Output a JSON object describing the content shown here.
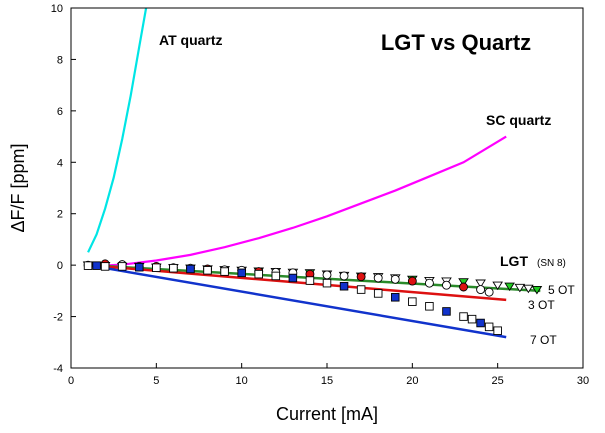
{
  "chart_data": {
    "type": "line",
    "title": "LGT vs Quartz",
    "xlabel": "Current [mA]",
    "ylabel": "ΔF/F [ppm]",
    "xlim": [
      0,
      30
    ],
    "ylim": [
      -4,
      10
    ],
    "x_ticks": [
      "0",
      "5",
      "10",
      "15",
      "20",
      "25",
      "30"
    ],
    "y_ticks": [
      "-4",
      "-2",
      "0",
      "2",
      "4",
      "6",
      "8",
      "10"
    ],
    "grid": false,
    "annotations": {
      "at_quartz": "AT quartz",
      "sc_quartz": "SC quartz",
      "lgt": "LGT",
      "lgt_sn": "(SN 8)",
      "ot5": "5 OT",
      "ot3": "3 OT",
      "ot7": "7 OT"
    },
    "series": [
      {
        "name": "AT quartz",
        "style": "line",
        "color": "#00e5e5",
        "points": [
          [
            1.0,
            0.5
          ],
          [
            1.5,
            1.2
          ],
          [
            2.0,
            2.2
          ],
          [
            2.5,
            3.4
          ],
          [
            3.0,
            4.9
          ],
          [
            3.5,
            6.6
          ],
          [
            4.0,
            8.5
          ],
          [
            4.4,
            10.0
          ]
        ]
      },
      {
        "name": "SC quartz",
        "style": "line",
        "color": "#ff00ff",
        "points": [
          [
            1.0,
            -0.05
          ],
          [
            3,
            0.02
          ],
          [
            5,
            0.18
          ],
          [
            7,
            0.4
          ],
          [
            9,
            0.7
          ],
          [
            11,
            1.05
          ],
          [
            13,
            1.45
          ],
          [
            15,
            1.9
          ],
          [
            17,
            2.4
          ],
          [
            19,
            2.9
          ],
          [
            21,
            3.45
          ],
          [
            23,
            4.0
          ],
          [
            25.5,
            5.0
          ]
        ]
      },
      {
        "name": "5 OT",
        "style": "markers",
        "marker": "triangle-down",
        "fill": "#22cc22",
        "line_color": "#2a8a2a",
        "points": [
          [
            1,
            0
          ],
          [
            2,
            -0.02
          ],
          [
            3,
            -0.05
          ],
          [
            4,
            -0.05
          ],
          [
            5,
            -0.08
          ],
          [
            6,
            -0.1
          ],
          [
            7,
            -0.12
          ],
          [
            8,
            -0.15
          ],
          [
            9,
            -0.18
          ],
          [
            10,
            -0.2
          ],
          [
            11,
            -0.23
          ],
          [
            12,
            -0.25
          ],
          [
            13,
            -0.28
          ],
          [
            14,
            -0.3
          ],
          [
            15,
            -0.35
          ],
          [
            16,
            -0.4
          ],
          [
            17,
            -0.43
          ],
          [
            18,
            -0.45
          ],
          [
            19,
            -0.5
          ],
          [
            20,
            -0.55
          ],
          [
            21,
            -0.6
          ],
          [
            22,
            -0.62
          ],
          [
            23,
            -0.65
          ],
          [
            24,
            -0.7
          ],
          [
            25,
            -0.78
          ],
          [
            25.7,
            -0.82
          ],
          [
            26.3,
            -0.87
          ],
          [
            26.8,
            -0.9
          ],
          [
            27.3,
            -0.95
          ]
        ],
        "fit": [
          [
            1,
            0
          ],
          [
            27.5,
            -1.0
          ]
        ]
      },
      {
        "name": "3 OT",
        "style": "markers",
        "marker": "circle",
        "fill": "#dd1111",
        "line_color": "#dd1111",
        "points": [
          [
            1,
            0
          ],
          [
            2,
            0.05
          ],
          [
            3,
            0.02
          ],
          [
            4,
            -0.05
          ],
          [
            5,
            -0.05
          ],
          [
            6,
            -0.1
          ],
          [
            7,
            -0.12
          ],
          [
            8,
            -0.15
          ],
          [
            9,
            -0.18
          ],
          [
            10,
            -0.2
          ],
          [
            11,
            -0.25
          ],
          [
            12,
            -0.28
          ],
          [
            13,
            -0.3
          ],
          [
            14,
            -0.35
          ],
          [
            15,
            -0.38
          ],
          [
            16,
            -0.42
          ],
          [
            17,
            -0.45
          ],
          [
            18,
            -0.5
          ],
          [
            19,
            -0.55
          ],
          [
            20,
            -0.62
          ],
          [
            21,
            -0.7
          ],
          [
            22,
            -0.78
          ],
          [
            23,
            -0.85
          ],
          [
            24,
            -0.95
          ],
          [
            24.5,
            -1.05
          ]
        ],
        "fit": [
          [
            1,
            0
          ],
          [
            25.5,
            -1.35
          ]
        ]
      },
      {
        "name": "7 OT",
        "style": "markers",
        "marker": "square",
        "fill": "#1133cc",
        "line_color": "#1133cc",
        "points": [
          [
            1,
            -0.02
          ],
          [
            1.5,
            -0.02
          ],
          [
            2,
            -0.05
          ],
          [
            3,
            -0.05
          ],
          [
            4,
            -0.08
          ],
          [
            5,
            -0.1
          ],
          [
            6,
            -0.12
          ],
          [
            7,
            -0.15
          ],
          [
            8,
            -0.2
          ],
          [
            9,
            -0.25
          ],
          [
            10,
            -0.3
          ],
          [
            11,
            -0.35
          ],
          [
            12,
            -0.42
          ],
          [
            13,
            -0.5
          ],
          [
            14,
            -0.6
          ],
          [
            15,
            -0.7
          ],
          [
            16,
            -0.82
          ],
          [
            17,
            -0.95
          ],
          [
            18,
            -1.1
          ],
          [
            19,
            -1.25
          ],
          [
            20,
            -1.42
          ],
          [
            21,
            -1.6
          ],
          [
            22,
            -1.8
          ],
          [
            23,
            -2.0
          ],
          [
            23.5,
            -2.1
          ],
          [
            24,
            -2.25
          ],
          [
            24.5,
            -2.4
          ],
          [
            25,
            -2.55
          ]
        ],
        "fit": [
          [
            1,
            0
          ],
          [
            25.5,
            -2.8
          ]
        ]
      }
    ]
  }
}
